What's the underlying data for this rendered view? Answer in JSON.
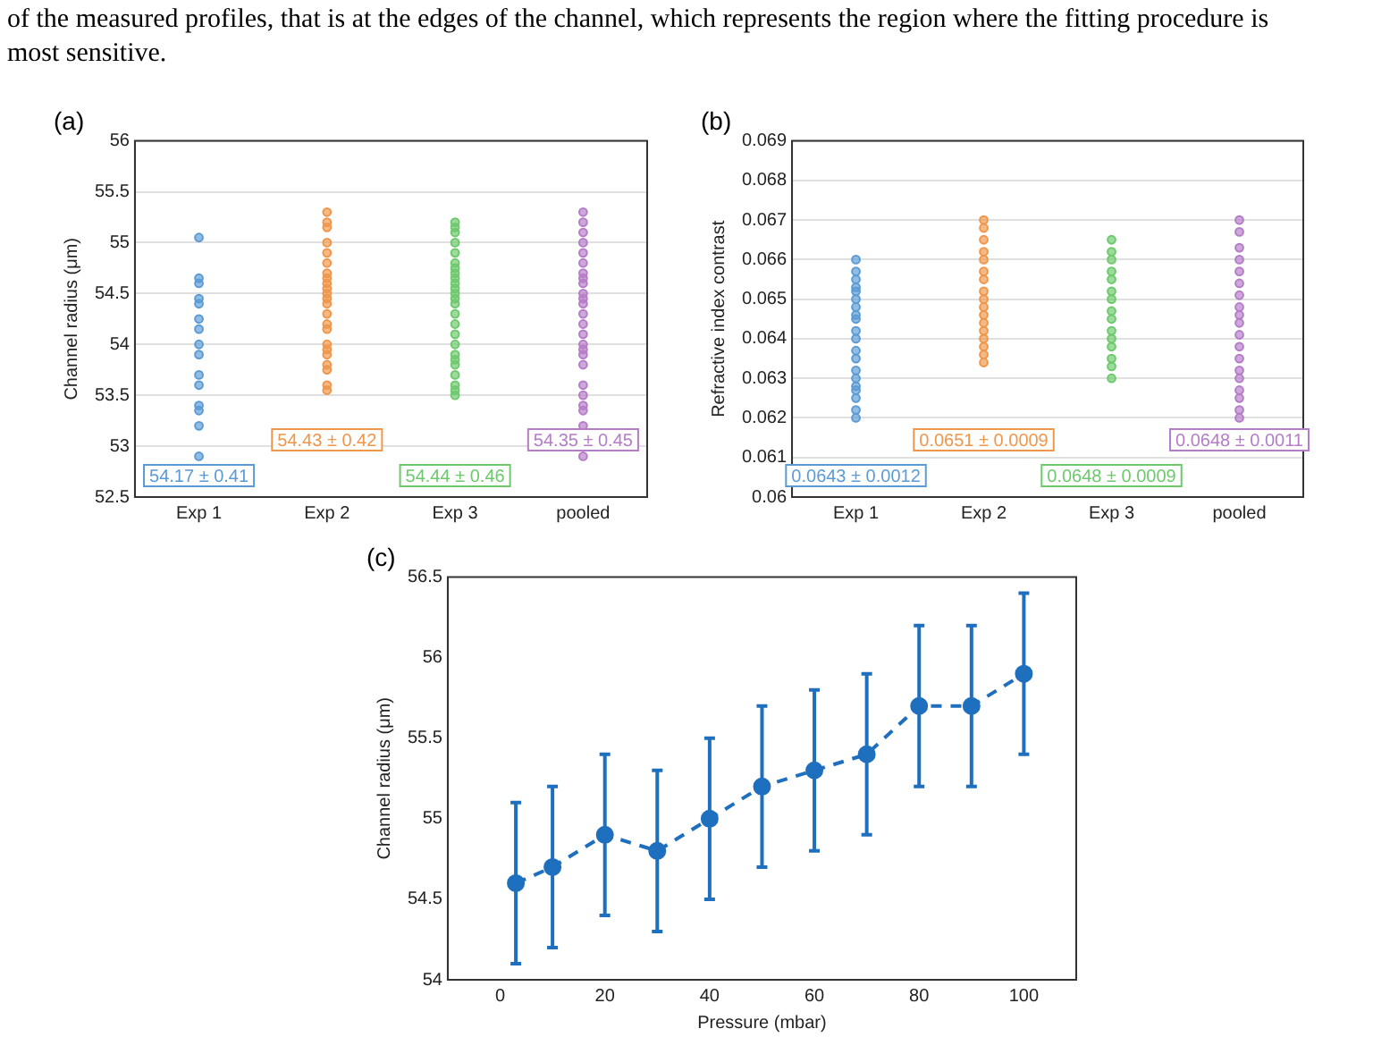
{
  "chart_data": [
    {
      "type": "scatter",
      "title": "(a)",
      "ylabel": "Channel radius (μm)",
      "categories": [
        "Exp 1",
        "Exp 2",
        "Exp 3",
        "pooled"
      ],
      "ylim": [
        52.5,
        56
      ],
      "yticks": [
        52.5,
        53,
        53.5,
        54,
        54.5,
        55,
        55.5,
        56
      ],
      "grid": "y",
      "legend": false,
      "series": [
        {
          "type": "scatter",
          "color": "#5b9bd5",
          "x": [
            "Exp 1",
            "Exp 1",
            "Exp 1",
            "Exp 1",
            "Exp 1",
            "Exp 1",
            "Exp 1",
            "Exp 1",
            "Exp 1",
            "Exp 1",
            "Exp 1",
            "Exp 1",
            "Exp 1",
            "Exp 1",
            "Exp 1"
          ],
          "values": [
            55.05,
            54.65,
            54.6,
            54.45,
            54.4,
            54.25,
            54.15,
            54.0,
            53.9,
            53.7,
            53.6,
            53.4,
            53.35,
            53.2,
            52.9
          ]
        },
        {
          "type": "scatter",
          "color": "#f0964a",
          "x": [
            "Exp 2",
            "Exp 2",
            "Exp 2",
            "Exp 2",
            "Exp 2",
            "Exp 2",
            "Exp 2",
            "Exp 2",
            "Exp 2",
            "Exp 2",
            "Exp 2",
            "Exp 2",
            "Exp 2",
            "Exp 2",
            "Exp 2",
            "Exp 2",
            "Exp 2",
            "Exp 2",
            "Exp 2",
            "Exp 2",
            "Exp 2",
            "Exp 2",
            "Exp 2"
          ],
          "values": [
            55.3,
            55.2,
            55.15,
            55.0,
            54.9,
            54.8,
            54.7,
            54.65,
            54.6,
            54.55,
            54.5,
            54.45,
            54.4,
            54.3,
            54.2,
            54.15,
            54.0,
            53.95,
            53.9,
            53.8,
            53.75,
            53.6,
            53.55
          ]
        },
        {
          "type": "scatter",
          "color": "#6cc96c",
          "x": [
            "Exp 3",
            "Exp 3",
            "Exp 3",
            "Exp 3",
            "Exp 3",
            "Exp 3",
            "Exp 3",
            "Exp 3",
            "Exp 3",
            "Exp 3",
            "Exp 3",
            "Exp 3",
            "Exp 3",
            "Exp 3",
            "Exp 3",
            "Exp 3",
            "Exp 3",
            "Exp 3",
            "Exp 3",
            "Exp 3",
            "Exp 3",
            "Exp 3",
            "Exp 3",
            "Exp 3",
            "Exp 3"
          ],
          "values": [
            55.2,
            55.15,
            55.1,
            55.0,
            54.9,
            54.8,
            54.75,
            54.7,
            54.65,
            54.6,
            54.55,
            54.5,
            54.45,
            54.4,
            54.3,
            54.2,
            54.1,
            54.0,
            53.9,
            53.85,
            53.8,
            53.7,
            53.6,
            53.55,
            53.5
          ]
        },
        {
          "type": "scatter",
          "color": "#b57cc8",
          "x": [
            "pooled",
            "pooled",
            "pooled",
            "pooled",
            "pooled",
            "pooled",
            "pooled",
            "pooled",
            "pooled",
            "pooled",
            "pooled",
            "pooled",
            "pooled",
            "pooled",
            "pooled",
            "pooled",
            "pooled",
            "pooled",
            "pooled",
            "pooled",
            "pooled",
            "pooled",
            "pooled",
            "pooled",
            "pooled"
          ],
          "values": [
            55.3,
            55.2,
            55.1,
            55.0,
            54.9,
            54.8,
            54.7,
            54.65,
            54.6,
            54.5,
            54.45,
            54.4,
            54.3,
            54.2,
            54.1,
            54.0,
            53.95,
            53.9,
            53.8,
            53.6,
            53.5,
            53.4,
            53.35,
            53.2,
            52.9
          ]
        }
      ],
      "annotations": [
        "of the measured profiles, that is at the edges of the channel, which represents the region where the fitting procedure is most sensitive.",
        "54.17 ± 0.41",
        "54.43 ± 0.42",
        "54.44 ± 0.46",
        "54.35 ± 0.45"
      ]
    },
    {
      "type": "scatter",
      "title": "(b)",
      "ylabel": "Refractive index contrast",
      "categories": [
        "Exp 1",
        "Exp 2",
        "Exp 3",
        "pooled"
      ],
      "ylim": [
        0.06,
        0.069
      ],
      "yticks": [
        0.06,
        0.061,
        0.062,
        0.063,
        0.064,
        0.065,
        0.066,
        0.067,
        0.068,
        0.069
      ],
      "grid": "y",
      "legend": false,
      "series": [
        {
          "type": "scatter",
          "color": "#5b9bd5",
          "x": [
            "Exp 1",
            "Exp 1",
            "Exp 1",
            "Exp 1",
            "Exp 1",
            "Exp 1",
            "Exp 1",
            "Exp 1",
            "Exp 1",
            "Exp 1",
            "Exp 1",
            "Exp 1",
            "Exp 1",
            "Exp 1",
            "Exp 1",
            "Exp 1",
            "Exp 1",
            "Exp 1",
            "Exp 1",
            "Exp 1"
          ],
          "values": [
            0.066,
            0.0657,
            0.0655,
            0.0653,
            0.065,
            0.0648,
            0.0645,
            0.0642,
            0.064,
            0.0637,
            0.0635,
            0.0632,
            0.063,
            0.0628,
            0.0627,
            0.0625,
            0.0622,
            0.062,
            0.0646,
            0.0652
          ]
        },
        {
          "type": "scatter",
          "color": "#f0964a",
          "x": [
            "Exp 2",
            "Exp 2",
            "Exp 2",
            "Exp 2",
            "Exp 2",
            "Exp 2",
            "Exp 2",
            "Exp 2",
            "Exp 2",
            "Exp 2",
            "Exp 2",
            "Exp 2",
            "Exp 2",
            "Exp 2",
            "Exp 2",
            "Exp 2",
            "Exp 2"
          ],
          "values": [
            0.067,
            0.0668,
            0.0665,
            0.0662,
            0.066,
            0.0657,
            0.0655,
            0.0652,
            0.065,
            0.0648,
            0.0646,
            0.0644,
            0.0642,
            0.064,
            0.0638,
            0.0636,
            0.0634
          ]
        },
        {
          "type": "scatter",
          "color": "#6cc96c",
          "x": [
            "Exp 3",
            "Exp 3",
            "Exp 3",
            "Exp 3",
            "Exp 3",
            "Exp 3",
            "Exp 3",
            "Exp 3",
            "Exp 3",
            "Exp 3",
            "Exp 3",
            "Exp 3",
            "Exp 3",
            "Exp 3",
            "Exp 3"
          ],
          "values": [
            0.0665,
            0.0662,
            0.066,
            0.0657,
            0.0655,
            0.0652,
            0.065,
            0.0647,
            0.0645,
            0.0642,
            0.064,
            0.0638,
            0.0635,
            0.0633,
            0.063
          ]
        },
        {
          "type": "scatter",
          "color": "#b57cc8",
          "x": [
            "pooled",
            "pooled",
            "pooled",
            "pooled",
            "pooled",
            "pooled",
            "pooled",
            "pooled",
            "pooled",
            "pooled",
            "pooled",
            "pooled",
            "pooled",
            "pooled",
            "pooled",
            "pooled",
            "pooled",
            "pooled",
            "pooled"
          ],
          "values": [
            0.067,
            0.0667,
            0.0663,
            0.066,
            0.0657,
            0.0654,
            0.0651,
            0.0648,
            0.0646,
            0.0644,
            0.0641,
            0.0638,
            0.0635,
            0.0632,
            0.063,
            0.0627,
            0.0625,
            0.0622,
            0.062
          ]
        }
      ],
      "annotations": [
        "0.0643 ± 0.0012",
        "0.0651 ± 0.0009",
        "0.0648 ± 0.0009",
        "0.0648 ± 0.0011"
      ]
    },
    {
      "type": "line",
      "title": "(c)",
      "xlabel": "Pressure (mbar)",
      "ylabel": "Channel radius (μm)",
      "x": [
        3,
        10,
        20,
        30,
        40,
        50,
        60,
        70,
        80,
        90,
        100
      ],
      "values": [
        54.6,
        54.7,
        54.9,
        54.8,
        55.0,
        55.2,
        55.3,
        55.4,
        55.7,
        55.7,
        55.9
      ],
      "errors": [
        0.5,
        0.5,
        0.5,
        0.5,
        0.5,
        0.5,
        0.5,
        0.5,
        0.5,
        0.5,
        0.5
      ],
      "color": "#1f6fbf",
      "marker": "circle",
      "line_style": "dashed",
      "legend": false,
      "xlim": [
        -10,
        110
      ],
      "xticks": [
        0,
        20,
        40,
        60,
        80,
        100
      ],
      "ylim": [
        54,
        56.5
      ],
      "yticks": [
        54,
        54.5,
        55,
        55.5,
        56,
        56.5
      ]
    }
  ]
}
